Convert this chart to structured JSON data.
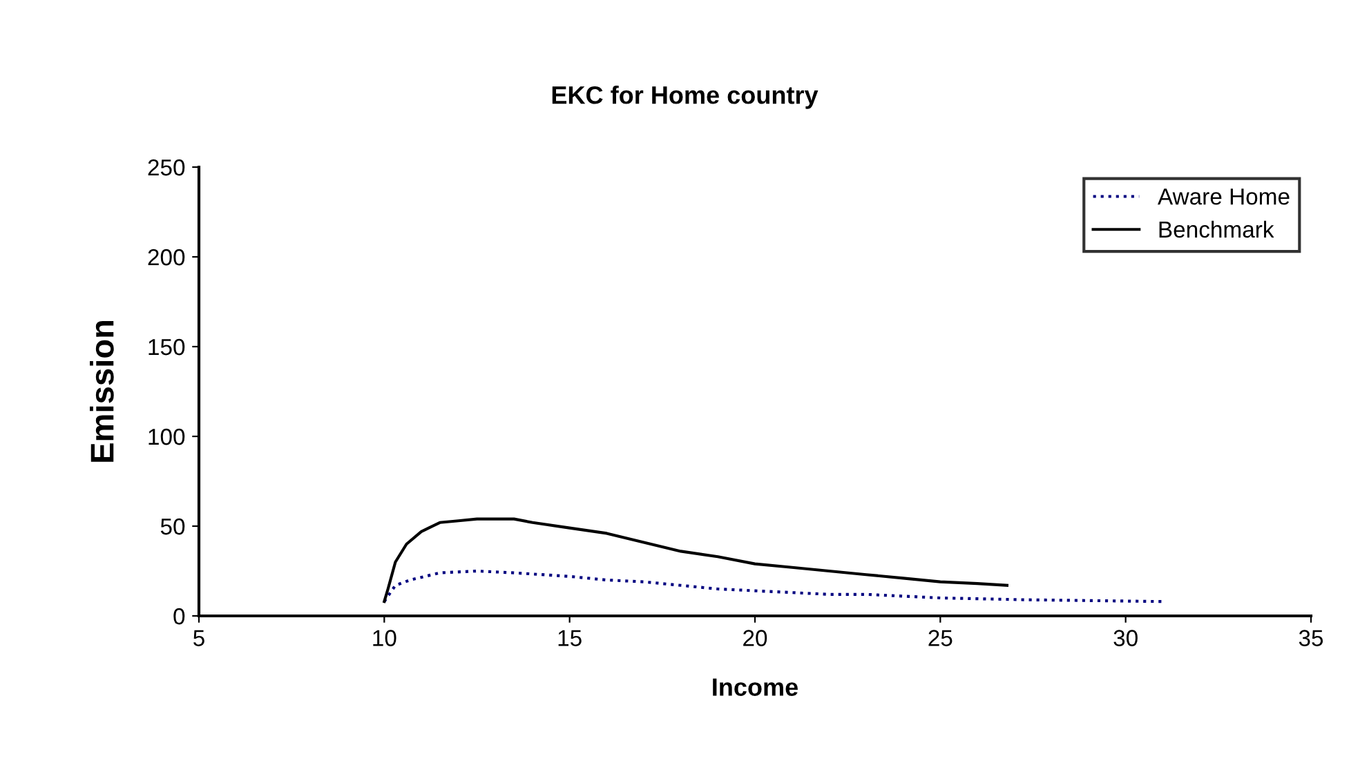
{
  "chart_data": {
    "type": "line",
    "title": "EKC for Home country",
    "xlabel": "Income",
    "ylabel": "Emission",
    "xlim": [
      5,
      35
    ],
    "xticks": [
      5,
      10,
      15,
      20,
      25,
      30,
      35
    ],
    "ylim": [
      0,
      250
    ],
    "yticks": [
      0,
      50,
      100,
      150,
      200,
      250
    ],
    "grid": false,
    "legend": "top right",
    "marker": "none",
    "series": [
      {
        "name": "Aware Home",
        "color": "#000080",
        "line_style": "dotted",
        "x": [
          10.0,
          10.3,
          10.7,
          11.5,
          12.5,
          13.5,
          15,
          16,
          17,
          18,
          19,
          20,
          21,
          22,
          23,
          24,
          25,
          27.3,
          31
        ],
        "values": [
          8,
          17,
          20,
          24,
          25,
          24,
          22,
          20,
          19,
          17,
          15,
          14,
          13,
          12,
          12,
          11,
          10,
          9,
          8
        ]
      },
      {
        "name": "Benchmark",
        "color": "#000000",
        "line_style": "solid",
        "x": [
          10.0,
          10.1,
          10.3,
          10.6,
          11,
          11.5,
          12,
          12.5,
          13.5,
          14,
          15,
          16,
          17,
          18,
          19,
          20,
          21,
          22,
          23,
          24,
          25,
          26,
          26.8
        ],
        "values": [
          8,
          15,
          30,
          40,
          47,
          52,
          53,
          54,
          54,
          52,
          49,
          46,
          41,
          36,
          33,
          29,
          27,
          25,
          23,
          21,
          19,
          18,
          17
        ]
      }
    ]
  }
}
